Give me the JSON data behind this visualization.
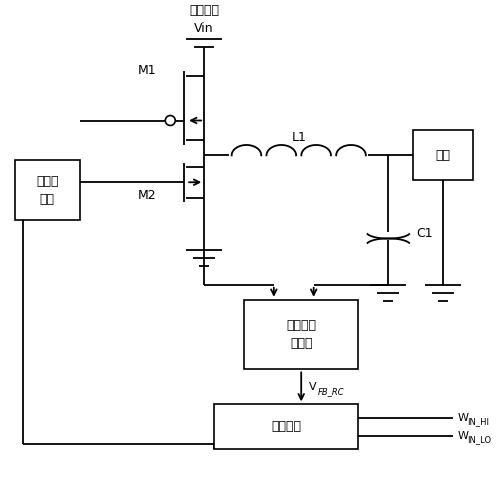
{
  "background_color": "#ffffff",
  "line_color": "#000000",
  "figsize": [
    4.96,
    4.8
  ],
  "dpi": 100,
  "labels": {
    "dc_source": "直流电源",
    "vin": "Vin",
    "m1": "M1",
    "m2": "M2",
    "l1": "L1",
    "c1": "C1",
    "switch_driver_line1": "开关驱",
    "switch_driver_line2": "动器",
    "triangle_line1": "三角波生",
    "triangle_line2": "成电路",
    "comparator": "比较电路",
    "load": "负载",
    "vfb_main": "V",
    "vfb_sub": "FB_RC",
    "whi_main": "W",
    "whi_sub": "IN_HI",
    "wlo_main": "W",
    "wlo_sub": "IN_LO"
  }
}
